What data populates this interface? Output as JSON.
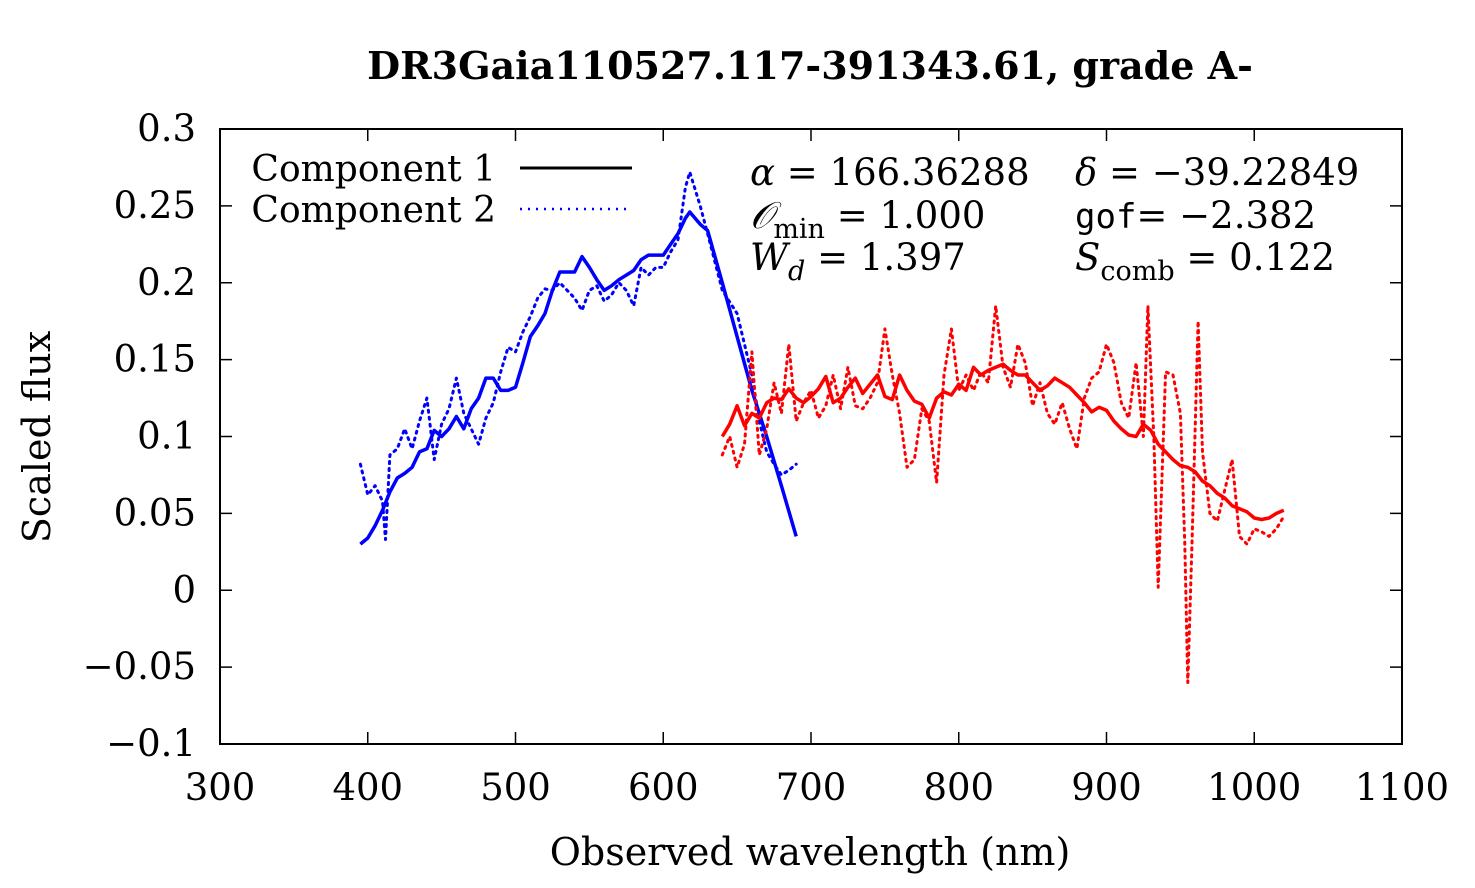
{
  "chart_data": {
    "type": "line",
    "title": "DR3Gaia110527.117-391343.61, grade A-",
    "xlabel": "Observed wavelength (nm)",
    "ylabel": "Scaled flux",
    "xlim": [
      300,
      1100
    ],
    "ylim": [
      -0.1,
      0.3
    ],
    "xticks": [
      300,
      400,
      500,
      600,
      700,
      800,
      900,
      1000,
      1100
    ],
    "yticks": [
      -0.1,
      -0.05,
      0,
      0.05,
      0.1,
      0.15,
      0.2,
      0.25,
      0.3
    ],
    "ytick_labels": [
      "−0.1",
      "−0.05",
      "0",
      "0.05",
      "0.1",
      "0.15",
      "0.2",
      "0.25",
      "0.3"
    ],
    "grid": false,
    "legend": {
      "position": "top-left",
      "entries": [
        {
          "label": "Component 1",
          "style": "solid",
          "color": "#000000"
        },
        {
          "label": "Component 2",
          "style": "dotted",
          "color": "#0000ff"
        }
      ]
    },
    "annotations": {
      "alpha_sym": "α",
      "alpha_val": " = 166.36288",
      "delta_sym": "δ",
      "delta_val": " = −39.22849",
      "o_sym": "𝒪",
      "o_sub": "min",
      "o_val": " = 1.000",
      "gof_sym": "gof",
      "gof_val": "= −2.382",
      "w_sym": "W",
      "w_sub": "d",
      "w_val": " = 1.397",
      "s_sym": "S",
      "s_sub": "comb",
      "s_val": " = 0.122"
    },
    "series": [
      {
        "name": "Component 1",
        "color": "#0000ff",
        "style": "solid",
        "x": [
          395,
          400,
          405,
          410,
          415,
          420,
          425,
          430,
          435,
          440,
          445,
          450,
          455,
          460,
          465,
          470,
          475,
          480,
          485,
          490,
          495,
          500,
          505,
          510,
          515,
          520,
          525,
          530,
          535,
          540,
          545,
          550,
          555,
          560,
          565,
          570,
          575,
          580,
          585,
          590,
          595,
          600,
          605,
          610,
          615,
          618,
          625,
          630,
          640,
          650,
          660,
          670,
          680,
          690
        ],
        "y": [
          0.03,
          0.034,
          0.042,
          0.052,
          0.064,
          0.073,
          0.076,
          0.08,
          0.09,
          0.092,
          0.104,
          0.1,
          0.105,
          0.113,
          0.105,
          0.118,
          0.125,
          0.138,
          0.138,
          0.13,
          0.13,
          0.132,
          0.148,
          0.165,
          0.172,
          0.18,
          0.195,
          0.207,
          0.207,
          0.207,
          0.217,
          0.21,
          0.202,
          0.195,
          0.198,
          0.202,
          0.205,
          0.208,
          0.215,
          0.218,
          0.218,
          0.218,
          0.225,
          0.232,
          0.242,
          0.246,
          0.238,
          0.234,
          0.2,
          0.165,
          0.13,
          0.1,
          0.068,
          0.035
        ]
      },
      {
        "name": "Component 2",
        "color": "#0000ff",
        "style": "dotted",
        "x": [
          395,
          400,
          405,
          410,
          412,
          415,
          420,
          425,
          430,
          435,
          440,
          445,
          450,
          455,
          460,
          465,
          470,
          475,
          480,
          485,
          490,
          495,
          500,
          505,
          510,
          515,
          520,
          525,
          530,
          535,
          540,
          545,
          550,
          555,
          560,
          565,
          570,
          575,
          580,
          585,
          590,
          595,
          600,
          605,
          610,
          615,
          618,
          625,
          630,
          640,
          650,
          655,
          660,
          665,
          670,
          675,
          680,
          685,
          690
        ],
        "y": [
          0.082,
          0.062,
          0.068,
          0.058,
          0.033,
          0.088,
          0.092,
          0.105,
          0.092,
          0.11,
          0.125,
          0.085,
          0.108,
          0.118,
          0.138,
          0.115,
          0.105,
          0.095,
          0.112,
          0.122,
          0.142,
          0.158,
          0.155,
          0.168,
          0.178,
          0.19,
          0.196,
          0.195,
          0.2,
          0.195,
          0.19,
          0.182,
          0.195,
          0.198,
          0.188,
          0.192,
          0.2,
          0.195,
          0.185,
          0.21,
          0.205,
          0.21,
          0.21,
          0.22,
          0.228,
          0.262,
          0.272,
          0.25,
          0.232,
          0.195,
          0.18,
          0.16,
          0.14,
          0.11,
          0.09,
          0.082,
          0.075,
          0.078,
          0.082
        ]
      },
      {
        "name": "",
        "color": "#ff0000",
        "style": "solid",
        "x": [
          640,
          645,
          650,
          655,
          660,
          665,
          670,
          675,
          680,
          685,
          690,
          695,
          700,
          705,
          710,
          715,
          720,
          725,
          730,
          735,
          740,
          745,
          750,
          755,
          760,
          765,
          770,
          775,
          780,
          785,
          790,
          795,
          800,
          805,
          810,
          815,
          820,
          825,
          830,
          835,
          840,
          845,
          850,
          855,
          860,
          865,
          870,
          875,
          880,
          885,
          890,
          895,
          900,
          905,
          910,
          915,
          920,
          925,
          930,
          935,
          940,
          945,
          950,
          955,
          960,
          965,
          970,
          975,
          980,
          985,
          990,
          995,
          1000,
          1005,
          1010,
          1015,
          1020
        ],
        "y": [
          0.1,
          0.108,
          0.12,
          0.107,
          0.115,
          0.112,
          0.122,
          0.125,
          0.124,
          0.131,
          0.125,
          0.122,
          0.126,
          0.131,
          0.139,
          0.122,
          0.125,
          0.132,
          0.138,
          0.128,
          0.134,
          0.14,
          0.126,
          0.124,
          0.14,
          0.13,
          0.123,
          0.121,
          0.112,
          0.125,
          0.129,
          0.127,
          0.134,
          0.13,
          0.145,
          0.14,
          0.143,
          0.145,
          0.147,
          0.143,
          0.14,
          0.14,
          0.135,
          0.13,
          0.133,
          0.138,
          0.135,
          0.132,
          0.127,
          0.122,
          0.116,
          0.119,
          0.117,
          0.11,
          0.105,
          0.101,
          0.1,
          0.108,
          0.104,
          0.095,
          0.09,
          0.085,
          0.081,
          0.08,
          0.077,
          0.071,
          0.068,
          0.063,
          0.06,
          0.055,
          0.053,
          0.051,
          0.047,
          0.046,
          0.047,
          0.05,
          0.052
        ]
      },
      {
        "name": "",
        "color": "#ff0000",
        "style": "dotted",
        "x": [
          640,
          645,
          650,
          655,
          660,
          665,
          670,
          675,
          680,
          685,
          690,
          695,
          700,
          705,
          710,
          715,
          720,
          725,
          730,
          735,
          740,
          745,
          750,
          755,
          760,
          765,
          770,
          775,
          780,
          785,
          790,
          795,
          800,
          805,
          810,
          815,
          820,
          825,
          830,
          835,
          840,
          845,
          850,
          855,
          860,
          865,
          870,
          875,
          880,
          885,
          890,
          895,
          900,
          905,
          910,
          915,
          920,
          925,
          928,
          932,
          935,
          940,
          945,
          950,
          953,
          955,
          958,
          962,
          965,
          970,
          975,
          980,
          985,
          990,
          995,
          1000,
          1005,
          1010,
          1015,
          1020
        ],
        "y": [
          0.088,
          0.1,
          0.08,
          0.095,
          0.155,
          0.088,
          0.105,
          0.135,
          0.115,
          0.16,
          0.11,
          0.122,
          0.13,
          0.112,
          0.12,
          0.14,
          0.118,
          0.145,
          0.12,
          0.118,
          0.125,
          0.135,
          0.17,
          0.14,
          0.115,
          0.08,
          0.085,
          0.118,
          0.11,
          0.07,
          0.14,
          0.17,
          0.13,
          0.14,
          0.13,
          0.142,
          0.135,
          0.185,
          0.145,
          0.132,
          0.16,
          0.148,
          0.12,
          0.135,
          0.115,
          0.108,
          0.122,
          0.105,
          0.092,
          0.125,
          0.138,
          0.142,
          0.16,
          0.148,
          0.122,
          0.112,
          0.148,
          0.1,
          0.185,
          0.1,
          0.002,
          0.142,
          0.14,
          0.115,
          0.03,
          -0.06,
          0.035,
          0.175,
          0.09,
          0.05,
          0.045,
          0.065,
          0.085,
          0.035,
          0.03,
          0.04,
          0.038,
          0.035,
          0.04,
          0.048
        ]
      }
    ]
  }
}
